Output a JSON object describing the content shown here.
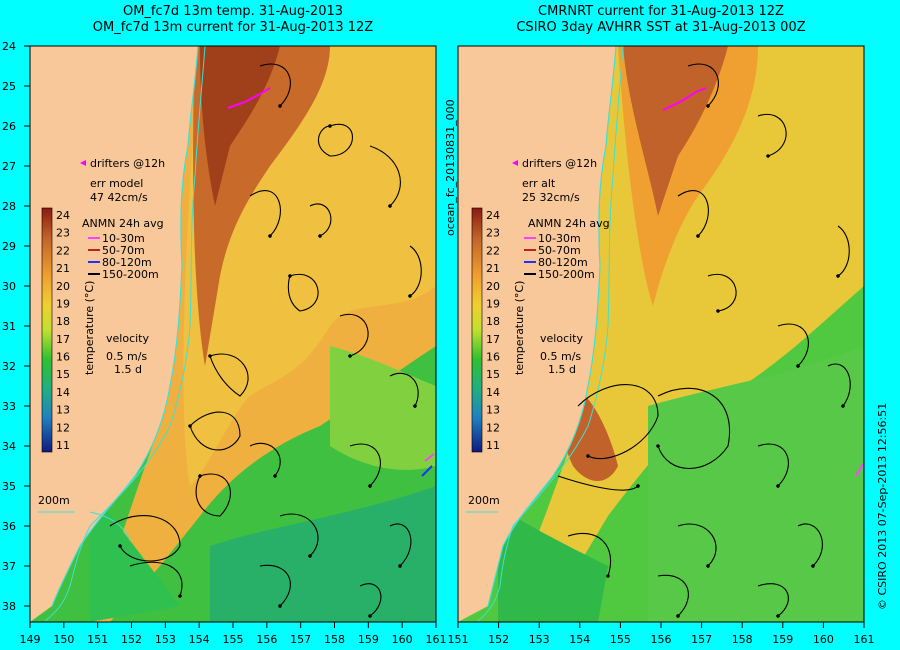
{
  "panels": [
    {
      "title_line1": "OM_fc7d 13m temp. 31-Aug-2013",
      "title_line2": "OM_fc7d 13m current for 31-Aug-2013 12Z",
      "drifters_label": "drifters @12h",
      "err_label": "err model",
      "err_value": "47 42cm/s",
      "anmn_title": "ANMN 24h avg",
      "anmn_items": [
        "10-30m",
        "50-70m",
        "80-120m",
        "150-200m"
      ],
      "colorbar_label": "temperature (°C)",
      "velocity_label": "velocity",
      "velocity_speed": "0.5 m/s",
      "velocity_time": "1.5 d",
      "isobath_label": "200m"
    },
    {
      "title_line1": "CMRNRT current for 31-Aug-2013 12Z",
      "title_line2": "CSIRO 3day AVHRR SST at 31-Aug-2013 00Z",
      "drifters_label": "drifters @12h",
      "err_label": "err alt",
      "err_value": "25 32cm/s",
      "anmn_title": "ANMN 24h avg",
      "anmn_items": [
        "10-30m",
        "50-70m",
        "80-120m",
        "150-200m"
      ],
      "colorbar_label": "temperature (°C)",
      "velocity_label": "velocity",
      "velocity_speed": "0.5 m/s",
      "velocity_time": "1.5 d",
      "isobath_label": "200m"
    }
  ],
  "y_ticks": [
    "24",
    "25",
    "26",
    "27",
    "28",
    "29",
    "30",
    "31",
    "32",
    "33",
    "34",
    "35",
    "36",
    "37",
    "38"
  ],
  "x_ticks_left": [
    "149",
    "150",
    "151",
    "152",
    "153",
    "154",
    "155",
    "156",
    "157",
    "158",
    "159",
    "160",
    "161"
  ],
  "x_ticks_right": [
    "151",
    "152",
    "153",
    "154",
    "155",
    "156",
    "157",
    "158",
    "159",
    "160",
    "161"
  ],
  "colorbar_ticks": [
    "24",
    "23",
    "22",
    "21",
    "20",
    "19",
    "18",
    "17",
    "16",
    "15",
    "14",
    "13",
    "12",
    "11"
  ],
  "side_label_middle": "ocean_fc_20130831_000",
  "side_label_right": "© CSIRO 2013   07-Sep-2013 12:56:51",
  "colors": {
    "background": "#00ffff",
    "land": "#f8c89a",
    "warm": "#c0622a",
    "orange": "#f0a030",
    "yellow": "#e8d030",
    "green": "#40c840",
    "cool_green": "#20b070",
    "coast_isobath": "#40e0d0",
    "drifter": "#ff00ff",
    "anmn_10_30": "#ff40ff",
    "anmn_50_70": "#c02020",
    "anmn_80_120": "#2030ff",
    "anmn_150_200": "#000000"
  }
}
